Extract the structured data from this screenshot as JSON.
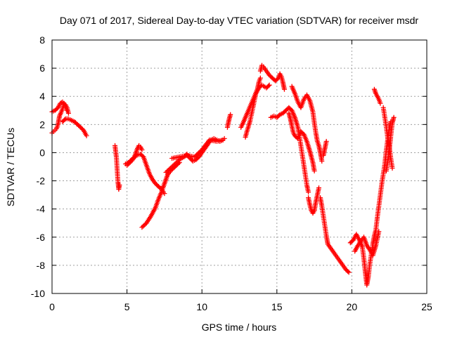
{
  "chart_data": {
    "type": "scatter",
    "title": "Day 071 of 2017, Sidereal Day-to-day VTEC variation (SDTVAR) for receiver msdr",
    "xlabel": "GPS time / hours",
    "ylabel": "SDTVAR / TECUs",
    "xlim": [
      0,
      25
    ],
    "ylim": [
      -10,
      8
    ],
    "x_ticks": [
      0,
      5,
      10,
      15,
      20,
      25
    ],
    "y_ticks": [
      -10,
      -8,
      -6,
      -4,
      -2,
      0,
      2,
      4,
      6,
      8
    ],
    "grid": true,
    "marker": "plus",
    "color": "#ff0000",
    "segments": [
      [
        [
          0.0,
          1.4
        ],
        [
          0.1,
          1.5
        ],
        [
          0.2,
          1.6
        ],
        [
          0.3,
          1.7
        ],
        [
          0.4,
          2.0
        ],
        [
          0.5,
          2.6
        ],
        [
          0.7,
          3.1
        ],
        [
          0.8,
          3.5
        ],
        [
          0.9,
          3.4
        ],
        [
          1.0,
          3.2
        ],
        [
          1.1,
          2.8
        ]
      ],
      [
        [
          0.0,
          2.9
        ],
        [
          0.2,
          3.0
        ],
        [
          0.4,
          3.2
        ],
        [
          0.55,
          3.5
        ],
        [
          0.7,
          3.6
        ],
        [
          0.85,
          3.4
        ],
        [
          1.0,
          3.0
        ]
      ],
      [
        [
          0.7,
          2.2
        ],
        [
          0.9,
          2.4
        ],
        [
          1.1,
          2.4
        ],
        [
          1.3,
          2.3
        ],
        [
          1.5,
          2.2
        ],
        [
          1.7,
          2.0
        ],
        [
          1.9,
          1.8
        ],
        [
          2.1,
          1.6
        ],
        [
          2.2,
          1.4
        ],
        [
          2.3,
          1.2
        ]
      ],
      [
        [
          4.2,
          0.5
        ],
        [
          4.3,
          -0.4
        ],
        [
          4.35,
          -1.3
        ],
        [
          4.4,
          -2.1
        ],
        [
          4.45,
          -2.6
        ],
        [
          4.5,
          -2.3
        ]
      ],
      [
        [
          4.9,
          -0.8
        ],
        [
          5.1,
          -0.7
        ],
        [
          5.3,
          -0.5
        ],
        [
          5.5,
          -0.3
        ],
        [
          5.6,
          0.0
        ],
        [
          5.7,
          0.3
        ],
        [
          5.8,
          0.5
        ],
        [
          5.9,
          0.4
        ],
        [
          6.0,
          0.2
        ]
      ],
      [
        [
          5.0,
          -0.9
        ],
        [
          5.3,
          -0.6
        ],
        [
          5.6,
          -0.2
        ],
        [
          5.9,
          -0.1
        ],
        [
          6.1,
          -0.3
        ],
        [
          6.3,
          -0.9
        ],
        [
          6.5,
          -1.5
        ],
        [
          6.7,
          -1.9
        ],
        [
          6.9,
          -2.2
        ],
        [
          7.1,
          -2.4
        ],
        [
          7.3,
          -2.6
        ],
        [
          7.5,
          -2.9
        ]
      ],
      [
        [
          6.0,
          -5.3
        ],
        [
          6.3,
          -5.0
        ],
        [
          6.6,
          -4.5
        ],
        [
          6.9,
          -3.9
        ],
        [
          7.1,
          -3.3
        ],
        [
          7.3,
          -2.8
        ],
        [
          7.5,
          -2.2
        ],
        [
          7.7,
          -1.6
        ],
        [
          7.9,
          -1.3
        ],
        [
          8.1,
          -1.1
        ],
        [
          8.3,
          -0.9
        ],
        [
          8.5,
          -0.7
        ]
      ],
      [
        [
          7.6,
          -1.4
        ],
        [
          7.9,
          -1.1
        ],
        [
          8.2,
          -0.8
        ],
        [
          8.5,
          -0.5
        ],
        [
          8.8,
          -0.3
        ],
        [
          9.0,
          -0.1
        ],
        [
          9.2,
          -0.4
        ],
        [
          9.4,
          -0.6
        ],
        [
          9.6,
          -0.5
        ],
        [
          9.8,
          -0.3
        ],
        [
          10.0,
          0.0
        ],
        [
          10.2,
          0.3
        ],
        [
          10.4,
          0.6
        ],
        [
          10.6,
          0.9
        ],
        [
          10.8,
          1.0
        ],
        [
          11.0,
          0.9
        ],
        [
          11.2,
          0.8
        ],
        [
          11.4,
          0.9
        ],
        [
          11.5,
          1.0
        ]
      ],
      [
        [
          8.0,
          -0.4
        ],
        [
          8.5,
          -0.3
        ],
        [
          9.0,
          -0.2
        ],
        [
          9.5,
          -0.3
        ],
        [
          10.0,
          0.2
        ],
        [
          10.5,
          0.9
        ],
        [
          11.0,
          0.8
        ],
        [
          11.4,
          0.9
        ]
      ],
      [
        [
          11.7,
          1.8
        ],
        [
          11.8,
          2.3
        ],
        [
          11.9,
          2.7
        ]
      ],
      [
        [
          12.6,
          1.8
        ],
        [
          12.7,
          2.0
        ],
        [
          12.9,
          2.5
        ],
        [
          13.1,
          3.0
        ],
        [
          13.3,
          3.5
        ],
        [
          13.5,
          4.0
        ],
        [
          13.7,
          4.5
        ],
        [
          13.8,
          5.0
        ],
        [
          13.9,
          5.3
        ]
      ],
      [
        [
          12.9,
          1.1
        ],
        [
          13.0,
          1.5
        ],
        [
          13.2,
          2.2
        ],
        [
          13.4,
          3.2
        ],
        [
          13.6,
          4.2
        ],
        [
          13.8,
          4.6
        ],
        [
          14.0,
          4.8
        ],
        [
          14.3,
          4.6
        ],
        [
          14.5,
          4.8
        ]
      ],
      [
        [
          13.9,
          5.8
        ],
        [
          14.0,
          6.2
        ],
        [
          14.1,
          6.1
        ],
        [
          14.3,
          5.8
        ],
        [
          14.5,
          5.5
        ],
        [
          14.7,
          5.3
        ],
        [
          14.9,
          5.1
        ],
        [
          15.1,
          5.3
        ],
        [
          15.2,
          5.6
        ],
        [
          15.3,
          5.4
        ],
        [
          15.4,
          5.0
        ],
        [
          15.5,
          4.5
        ]
      ],
      [
        [
          14.6,
          2.5
        ],
        [
          14.8,
          2.6
        ],
        [
          15.0,
          2.5
        ],
        [
          15.2,
          2.7
        ],
        [
          15.4,
          2.8
        ],
        [
          15.6,
          3.0
        ],
        [
          15.8,
          3.2
        ],
        [
          16.0,
          3.0
        ],
        [
          16.2,
          2.5
        ],
        [
          16.4,
          1.8
        ],
        [
          16.5,
          1.2
        ],
        [
          16.6,
          0.5
        ],
        [
          16.7,
          -0.2
        ],
        [
          16.8,
          -0.9
        ],
        [
          16.9,
          -1.6
        ],
        [
          17.0,
          -2.3
        ],
        [
          17.1,
          -2.8
        ]
      ],
      [
        [
          15.8,
          2.8
        ],
        [
          15.9,
          2.4
        ],
        [
          16.0,
          1.9
        ],
        [
          16.1,
          1.4
        ],
        [
          16.2,
          1.2
        ],
        [
          16.4,
          1.0
        ],
        [
          16.6,
          1.5
        ],
        [
          16.8,
          1.3
        ],
        [
          17.0,
          0.8
        ],
        [
          17.2,
          0.1
        ],
        [
          17.4,
          -0.7
        ],
        [
          17.5,
          -1.3
        ]
      ],
      [
        [
          16.0,
          4.7
        ],
        [
          16.2,
          4.2
        ],
        [
          16.4,
          3.6
        ],
        [
          16.6,
          3.2
        ],
        [
          16.8,
          3.8
        ],
        [
          17.0,
          4.1
        ],
        [
          17.2,
          3.7
        ],
        [
          17.4,
          2.9
        ],
        [
          17.5,
          2.1
        ],
        [
          17.6,
          1.4
        ],
        [
          17.7,
          0.8
        ],
        [
          17.8,
          0.5
        ],
        [
          17.9,
          0.0
        ],
        [
          18.0,
          -0.6
        ]
      ],
      [
        [
          17.1,
          -3.2
        ],
        [
          17.2,
          -3.7
        ],
        [
          17.3,
          -4.1
        ],
        [
          17.4,
          -4.3
        ],
        [
          17.5,
          -4.1
        ],
        [
          17.6,
          -3.5
        ],
        [
          17.7,
          -3.0
        ],
        [
          17.8,
          -2.5
        ]
      ],
      [
        [
          18.1,
          -0.2
        ],
        [
          18.2,
          0.3
        ],
        [
          18.3,
          0.8
        ]
      ],
      [
        [
          17.9,
          -3.2
        ],
        [
          18.0,
          -3.8
        ],
        [
          18.1,
          -4.5
        ],
        [
          18.2,
          -5.2
        ],
        [
          18.3,
          -5.9
        ],
        [
          18.4,
          -6.5
        ],
        [
          18.6,
          -6.8
        ],
        [
          18.8,
          -7.1
        ],
        [
          19.0,
          -7.4
        ],
        [
          19.2,
          -7.7
        ],
        [
          19.4,
          -8.0
        ],
        [
          19.6,
          -8.3
        ],
        [
          19.8,
          -8.5
        ]
      ],
      [
        [
          19.9,
          -6.4
        ],
        [
          20.1,
          -6.2
        ],
        [
          20.3,
          -5.8
        ],
        [
          20.5,
          -6.2
        ],
        [
          20.7,
          -6.7
        ],
        [
          20.8,
          -7.5
        ],
        [
          20.9,
          -8.5
        ],
        [
          21.0,
          -9.4
        ],
        [
          21.1,
          -8.8
        ],
        [
          21.2,
          -7.9
        ],
        [
          21.3,
          -7.2
        ],
        [
          21.4,
          -6.5
        ],
        [
          21.5,
          -5.9
        ],
        [
          21.6,
          -5.5
        ],
        [
          21.7,
          -4.6
        ],
        [
          21.8,
          -3.8
        ],
        [
          21.9,
          -3.0
        ],
        [
          22.0,
          -2.2
        ],
        [
          22.1,
          -1.5
        ],
        [
          22.2,
          -0.8
        ],
        [
          22.3,
          0.2
        ],
        [
          22.4,
          1.0
        ],
        [
          22.5,
          1.8
        ],
        [
          22.6,
          2.2
        ]
      ],
      [
        [
          20.2,
          -7.0
        ],
        [
          20.4,
          -6.6
        ],
        [
          20.6,
          -6.3
        ],
        [
          20.8,
          -6.0
        ],
        [
          21.0,
          -6.6
        ],
        [
          21.2,
          -6.9
        ],
        [
          21.4,
          -7.3
        ],
        [
          21.6,
          -6.6
        ],
        [
          21.8,
          -5.6
        ]
      ],
      [
        [
          21.5,
          4.5
        ],
        [
          21.6,
          4.2
        ],
        [
          21.7,
          4.0
        ],
        [
          21.8,
          3.8
        ],
        [
          21.9,
          3.5
        ]
      ],
      [
        [
          22.1,
          3.2
        ],
        [
          22.2,
          2.5
        ],
        [
          22.3,
          1.8
        ],
        [
          22.4,
          1.0
        ],
        [
          22.5,
          0.4
        ],
        [
          22.6,
          -0.4
        ],
        [
          22.7,
          -1.1
        ]
      ],
      [
        [
          22.3,
          -1.3
        ],
        [
          22.4,
          -0.6
        ],
        [
          22.5,
          0.2
        ],
        [
          22.6,
          1.2
        ],
        [
          22.7,
          2.1
        ],
        [
          22.8,
          2.5
        ]
      ]
    ]
  }
}
